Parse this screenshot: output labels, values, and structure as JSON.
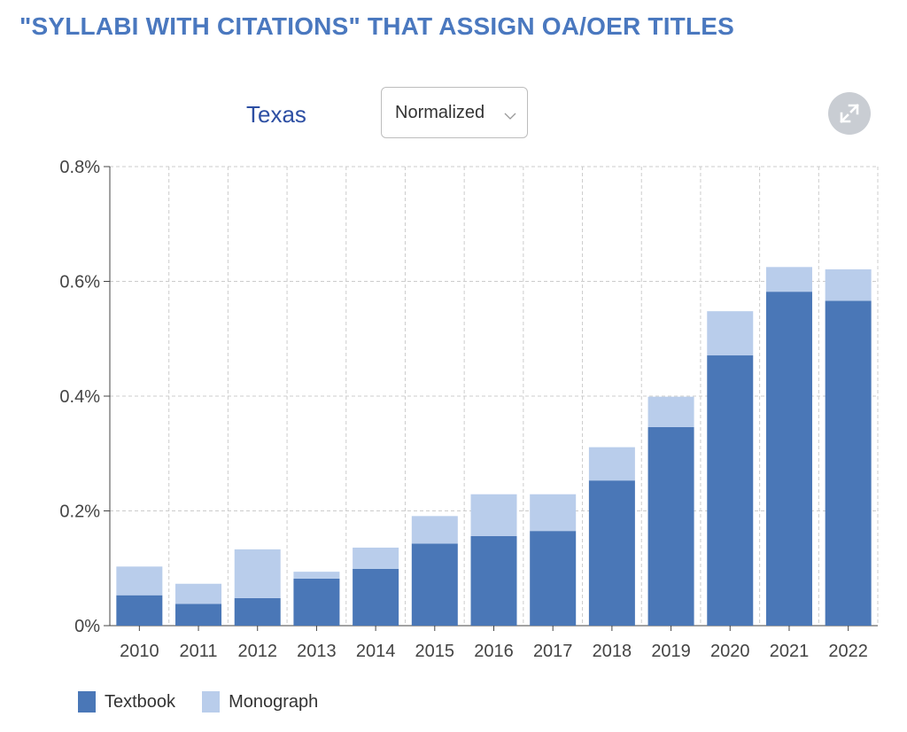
{
  "title": "\"SYLLABI WITH CITATIONS\" THAT ASSIGN OA/OER TITLES",
  "controls": {
    "state": "Texas",
    "mode": "Normalized",
    "fullscreen_icon": "expand-icon"
  },
  "colors": {
    "title": "#4a78bf",
    "state": "#2d4fa3",
    "textbook": "#4a77b7",
    "monograph": "#b9cdeb",
    "grid": "#cccccc"
  },
  "chart_data": {
    "type": "bar",
    "stacked": true,
    "categories": [
      "2010",
      "2011",
      "2012",
      "2013",
      "2014",
      "2015",
      "2016",
      "2017",
      "2018",
      "2019",
      "2020",
      "2021",
      "2022"
    ],
    "series": [
      {
        "name": "Textbook",
        "values": [
          0.053,
          0.038,
          0.048,
          0.082,
          0.099,
          0.143,
          0.156,
          0.165,
          0.253,
          0.346,
          0.471,
          0.582,
          0.566
        ]
      },
      {
        "name": "Monograph",
        "values": [
          0.05,
          0.035,
          0.085,
          0.012,
          0.037,
          0.048,
          0.073,
          0.064,
          0.058,
          0.053,
          0.077,
          0.043,
          0.055
        ]
      }
    ],
    "yticks": [
      "0%",
      "0.2%",
      "0.4%",
      "0.6%",
      "0.8%"
    ],
    "ylim": [
      0,
      0.8
    ],
    "y_unit": "%",
    "grid": true,
    "grid_style": "dashed",
    "legend_position": "bottom-left"
  }
}
